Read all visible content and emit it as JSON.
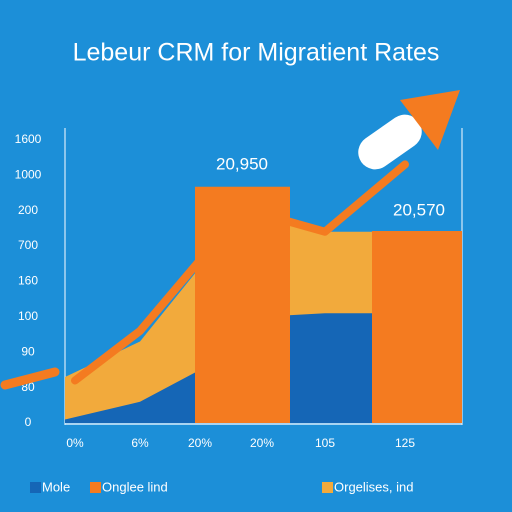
{
  "chart_data": {
    "type": "combo",
    "title": "Lebeur CRM for Migratient Rates",
    "categories": [
      "0%",
      "6%",
      "20%",
      "20%",
      "105",
      "125"
    ],
    "y_labels": [
      "0",
      "80",
      "90",
      "100",
      "160",
      "700",
      "200",
      "1000",
      "1600"
    ],
    "ylim": [
      0,
      8.3
    ],
    "grid": false,
    "series": [
      {
        "name": "Mole",
        "color": "#1566b6",
        "type": "area",
        "values": [
          0.1,
          0.6,
          1.5,
          3.0,
          3.1,
          3.1
        ]
      },
      {
        "name": "Onglee lind",
        "color": "#f47b20",
        "type": "bar",
        "values": [
          null,
          null,
          6.67,
          null,
          null,
          5.42
        ]
      },
      {
        "name": "Orgelises, ind",
        "color": "#f2aa3c",
        "type": "area",
        "values": [
          1.3,
          2.3,
          4.4,
          5.7,
          5.4,
          5.4
        ]
      }
    ],
    "line": {
      "color": "#f47b20",
      "values": [
        1.2,
        2.6,
        4.6,
        5.9,
        5.4,
        7.3
      ]
    },
    "annotations": [
      "20,950",
      "20,570"
    ]
  }
}
